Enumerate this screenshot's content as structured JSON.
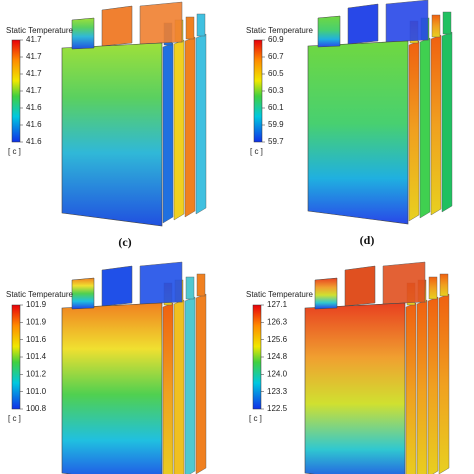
{
  "panels": [
    {
      "title": "Static Temperature",
      "ticks": [
        "41.7",
        "41.7",
        "41.7",
        "41.7",
        "41.6",
        "41.6",
        "41.6"
      ],
      "unit": "[ c ]"
    },
    {
      "title": "Static Temperature",
      "ticks": [
        "60.9",
        "60.7",
        "60.5",
        "60.3",
        "60.1",
        "59.9",
        "59.7"
      ],
      "unit": "[ c ]"
    },
    {
      "title": "Static Temperature",
      "ticks": [
        "101.9",
        "101.9",
        "101.6",
        "101.4",
        "101.2",
        "101.0",
        "100.8"
      ],
      "unit": "[ c ]"
    },
    {
      "title": "Static Temperature",
      "ticks": [
        "127.1",
        "126.3",
        "125.6",
        "124.8",
        "124.0",
        "123.3",
        "122.5"
      ],
      "unit": "[ c ]"
    }
  ],
  "labels": [
    "(c)",
    "(d)"
  ]
}
